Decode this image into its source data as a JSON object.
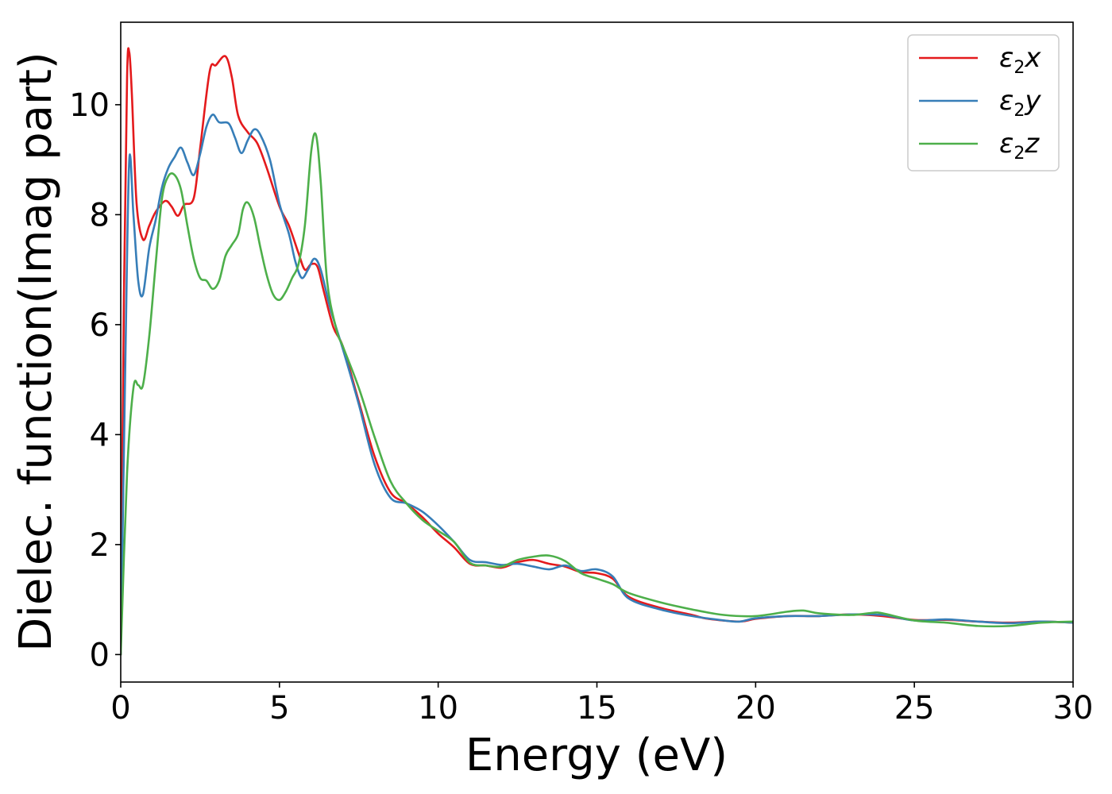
{
  "chart_data": {
    "type": "line",
    "xlabel": "Energy (eV)",
    "ylabel": "Dielec. function(Imag part)",
    "xlim": [
      0,
      30
    ],
    "ylim": [
      -0.5,
      11.5
    ],
    "xticks": [
      0,
      5,
      10,
      15,
      20,
      25,
      30
    ],
    "yticks": [
      0,
      2,
      4,
      6,
      8,
      10
    ],
    "grid": false,
    "legend_position": "top-right",
    "series": [
      {
        "name": "ε2x",
        "legend_base": "ε",
        "legend_sub": "2",
        "legend_suffix": "x",
        "color": "#e41a1c",
        "points": [
          [
            0,
            0
          ],
          [
            0.1,
            6.5
          ],
          [
            0.2,
            10.5
          ],
          [
            0.27,
            10.95
          ],
          [
            0.35,
            10.2
          ],
          [
            0.5,
            8.2
          ],
          [
            0.7,
            7.55
          ],
          [
            0.9,
            7.8
          ],
          [
            1.1,
            8.05
          ],
          [
            1.4,
            8.25
          ],
          [
            1.6,
            8.15
          ],
          [
            1.8,
            7.98
          ],
          [
            2.0,
            8.18
          ],
          [
            2.3,
            8.3
          ],
          [
            2.5,
            9.2
          ],
          [
            2.8,
            10.6
          ],
          [
            3.0,
            10.72
          ],
          [
            3.3,
            10.88
          ],
          [
            3.5,
            10.5
          ],
          [
            3.7,
            9.8
          ],
          [
            4.0,
            9.5
          ],
          [
            4.3,
            9.3
          ],
          [
            4.6,
            8.85
          ],
          [
            5.0,
            8.15
          ],
          [
            5.3,
            7.8
          ],
          [
            5.6,
            7.3
          ],
          [
            5.8,
            7.0
          ],
          [
            6.0,
            7.1
          ],
          [
            6.2,
            7.05
          ],
          [
            6.4,
            6.6
          ],
          [
            6.7,
            5.95
          ],
          [
            7.0,
            5.6
          ],
          [
            7.5,
            4.6
          ],
          [
            8.0,
            3.6
          ],
          [
            8.5,
            2.95
          ],
          [
            9.0,
            2.75
          ],
          [
            9.5,
            2.5
          ],
          [
            10.0,
            2.2
          ],
          [
            10.5,
            1.95
          ],
          [
            11.0,
            1.65
          ],
          [
            11.5,
            1.62
          ],
          [
            12.0,
            1.58
          ],
          [
            12.5,
            1.68
          ],
          [
            13.0,
            1.72
          ],
          [
            13.5,
            1.65
          ],
          [
            14.0,
            1.6
          ],
          [
            14.5,
            1.5
          ],
          [
            15.0,
            1.48
          ],
          [
            15.5,
            1.38
          ],
          [
            16.0,
            1.05
          ],
          [
            17.0,
            0.85
          ],
          [
            18.0,
            0.72
          ],
          [
            18.5,
            0.65
          ],
          [
            19.5,
            0.6
          ],
          [
            20.0,
            0.65
          ],
          [
            21.0,
            0.7
          ],
          [
            22.0,
            0.7
          ],
          [
            23.0,
            0.73
          ],
          [
            24.0,
            0.7
          ],
          [
            25.0,
            0.63
          ],
          [
            26.0,
            0.63
          ],
          [
            27.0,
            0.6
          ],
          [
            28.0,
            0.58
          ],
          [
            29.0,
            0.6
          ],
          [
            30.0,
            0.58
          ]
        ]
      },
      {
        "name": "ε2y",
        "legend_base": "ε",
        "legend_sub": "2",
        "legend_suffix": "y",
        "color": "#377eb8",
        "points": [
          [
            0,
            0
          ],
          [
            0.15,
            5.5
          ],
          [
            0.27,
            9.0
          ],
          [
            0.4,
            8.0
          ],
          [
            0.55,
            6.8
          ],
          [
            0.7,
            6.55
          ],
          [
            0.9,
            7.4
          ],
          [
            1.1,
            7.9
          ],
          [
            1.3,
            8.5
          ],
          [
            1.5,
            8.85
          ],
          [
            1.7,
            9.05
          ],
          [
            1.9,
            9.22
          ],
          [
            2.1,
            8.95
          ],
          [
            2.3,
            8.72
          ],
          [
            2.5,
            9.1
          ],
          [
            2.7,
            9.6
          ],
          [
            2.9,
            9.82
          ],
          [
            3.1,
            9.68
          ],
          [
            3.4,
            9.66
          ],
          [
            3.6,
            9.4
          ],
          [
            3.8,
            9.12
          ],
          [
            4.0,
            9.35
          ],
          [
            4.2,
            9.55
          ],
          [
            4.4,
            9.45
          ],
          [
            4.7,
            9.0
          ],
          [
            5.0,
            8.2
          ],
          [
            5.3,
            7.65
          ],
          [
            5.5,
            7.15
          ],
          [
            5.7,
            6.85
          ],
          [
            5.9,
            7.0
          ],
          [
            6.1,
            7.2
          ],
          [
            6.3,
            7.0
          ],
          [
            6.6,
            6.3
          ],
          [
            7.0,
            5.55
          ],
          [
            7.5,
            4.55
          ],
          [
            8.0,
            3.45
          ],
          [
            8.5,
            2.85
          ],
          [
            9.0,
            2.75
          ],
          [
            9.5,
            2.6
          ],
          [
            10.0,
            2.35
          ],
          [
            10.5,
            2.05
          ],
          [
            11.0,
            1.72
          ],
          [
            11.5,
            1.68
          ],
          [
            12.0,
            1.63
          ],
          [
            12.5,
            1.65
          ],
          [
            13.0,
            1.6
          ],
          [
            13.5,
            1.55
          ],
          [
            14.0,
            1.62
          ],
          [
            14.5,
            1.52
          ],
          [
            15.0,
            1.55
          ],
          [
            15.5,
            1.42
          ],
          [
            16.0,
            1.02
          ],
          [
            17.0,
            0.82
          ],
          [
            18.0,
            0.7
          ],
          [
            19.0,
            0.62
          ],
          [
            19.5,
            0.6
          ],
          [
            20.0,
            0.66
          ],
          [
            21.0,
            0.7
          ],
          [
            22.0,
            0.7
          ],
          [
            23.0,
            0.73
          ],
          [
            24.0,
            0.72
          ],
          [
            25.0,
            0.62
          ],
          [
            26.0,
            0.64
          ],
          [
            27.0,
            0.6
          ],
          [
            28.0,
            0.57
          ],
          [
            29.0,
            0.6
          ],
          [
            30.0,
            0.58
          ]
        ]
      },
      {
        "name": "ε2z",
        "legend_base": "ε",
        "legend_sub": "2",
        "legend_suffix": "z",
        "color": "#4daf4a",
        "points": [
          [
            0,
            0
          ],
          [
            0.2,
            3.3
          ],
          [
            0.4,
            4.85
          ],
          [
            0.55,
            4.9
          ],
          [
            0.7,
            4.9
          ],
          [
            0.9,
            5.8
          ],
          [
            1.1,
            7.1
          ],
          [
            1.3,
            8.3
          ],
          [
            1.5,
            8.7
          ],
          [
            1.7,
            8.72
          ],
          [
            1.9,
            8.45
          ],
          [
            2.1,
            7.8
          ],
          [
            2.3,
            7.2
          ],
          [
            2.5,
            6.85
          ],
          [
            2.7,
            6.8
          ],
          [
            2.9,
            6.65
          ],
          [
            3.1,
            6.8
          ],
          [
            3.3,
            7.25
          ],
          [
            3.5,
            7.45
          ],
          [
            3.7,
            7.65
          ],
          [
            3.85,
            8.1
          ],
          [
            4.0,
            8.22
          ],
          [
            4.2,
            7.95
          ],
          [
            4.4,
            7.4
          ],
          [
            4.6,
            6.9
          ],
          [
            4.8,
            6.55
          ],
          [
            5.0,
            6.45
          ],
          [
            5.2,
            6.6
          ],
          [
            5.4,
            6.85
          ],
          [
            5.6,
            7.1
          ],
          [
            5.8,
            7.8
          ],
          [
            6.0,
            9.15
          ],
          [
            6.15,
            9.45
          ],
          [
            6.3,
            8.6
          ],
          [
            6.5,
            6.8
          ],
          [
            6.8,
            5.9
          ],
          [
            7.0,
            5.6
          ],
          [
            7.5,
            4.85
          ],
          [
            8.0,
            3.95
          ],
          [
            8.5,
            3.15
          ],
          [
            9.0,
            2.75
          ],
          [
            9.5,
            2.45
          ],
          [
            10.0,
            2.25
          ],
          [
            10.5,
            2.05
          ],
          [
            11.0,
            1.67
          ],
          [
            11.5,
            1.62
          ],
          [
            12.0,
            1.6
          ],
          [
            12.5,
            1.72
          ],
          [
            13.0,
            1.78
          ],
          [
            13.5,
            1.8
          ],
          [
            14.0,
            1.7
          ],
          [
            14.5,
            1.48
          ],
          [
            15.0,
            1.38
          ],
          [
            15.5,
            1.28
          ],
          [
            16.0,
            1.12
          ],
          [
            17.0,
            0.95
          ],
          [
            18.0,
            0.82
          ],
          [
            19.0,
            0.72
          ],
          [
            20.0,
            0.7
          ],
          [
            21.0,
            0.78
          ],
          [
            21.5,
            0.8
          ],
          [
            22.0,
            0.75
          ],
          [
            23.0,
            0.72
          ],
          [
            23.7,
            0.76
          ],
          [
            24.0,
            0.75
          ],
          [
            25.0,
            0.62
          ],
          [
            26.0,
            0.58
          ],
          [
            27.0,
            0.52
          ],
          [
            28.0,
            0.52
          ],
          [
            29.0,
            0.58
          ],
          [
            30.0,
            0.6
          ]
        ]
      }
    ]
  }
}
